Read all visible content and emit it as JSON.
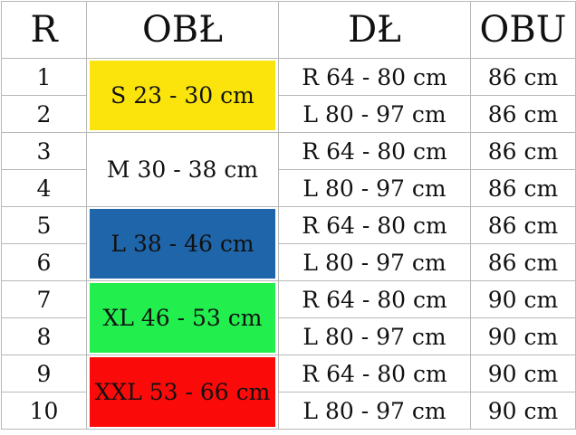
{
  "table": {
    "header": [
      "R",
      "OBŁ",
      "DŁ",
      "OBU"
    ],
    "rows": [
      [
        "1",
        "R 64 - 80 cm",
        "86 cm"
      ],
      [
        "2",
        "L 80 - 97 cm",
        "86 cm"
      ],
      [
        "3",
        "R 64 - 80 cm",
        "86 cm"
      ],
      [
        "4",
        "L 80 - 97 cm",
        "86 cm"
      ],
      [
        "5",
        "R 64 - 80 cm",
        "86 cm"
      ],
      [
        "6",
        "L 80 - 97 cm",
        "86 cm"
      ],
      [
        "7",
        "R 64 - 80 cm",
        "90 cm"
      ],
      [
        "8",
        "L 80 - 97 cm",
        "90 cm"
      ],
      [
        "9",
        "R 64 - 80 cm",
        "90 cm"
      ],
      [
        "10",
        "L 80 - 97 cm",
        "90 cm"
      ]
    ],
    "groups": [
      {
        "label": "S 23 - 30 cm",
        "color": "#fbe40c"
      },
      {
        "label": "M 30 - 38 cm",
        "color": "#ffffff"
      },
      {
        "label": "L 38 - 46 cm",
        "color": "#1f65aa"
      },
      {
        "label": "XL 46 - 53 cm",
        "color": "#22ef4e"
      },
      {
        "label": "XXL 53 - 66 cm",
        "color": "#fb0a0a"
      }
    ]
  }
}
